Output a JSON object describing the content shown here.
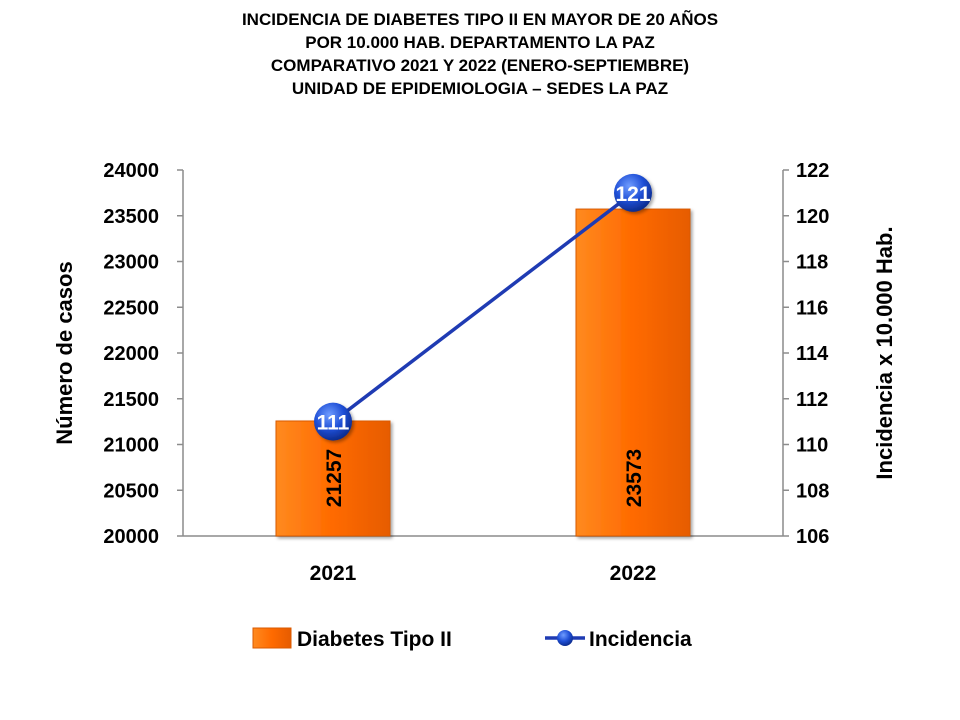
{
  "title_lines": [
    "INCIDENCIA DE DIABETES TIPO II EN MAYOR DE 20 AÑOS",
    "POR 10.000 HAB. DEPARTAMENTO LA PAZ",
    "COMPARATIVO 2021 Y 2022 (ENERO-SEPTIEMBRE)",
    "UNIDAD DE EPIDEMIOLOGIA – SEDES LA PAZ"
  ],
  "chart_data": {
    "type": "bar",
    "categories": [
      "2021",
      "2022"
    ],
    "series": [
      {
        "name": "Diabetes Tipo II",
        "type": "bar",
        "axis": "left",
        "values": [
          21257,
          23573
        ],
        "color": "#ff6a00"
      },
      {
        "name": "Incidencia",
        "type": "line",
        "axis": "right",
        "values": [
          111,
          121
        ],
        "color": "#1f3bb3",
        "marker_color": "#1f4fd6"
      }
    ],
    "ylabel": "Número de casos",
    "y2label": "Incidencia x 10.000 Hab.",
    "ylim": [
      20000,
      24000
    ],
    "y2lim": [
      106,
      122
    ],
    "yticks": [
      "20000",
      "20500",
      "21000",
      "21500",
      "22000",
      "22500",
      "23000",
      "23500",
      "24000"
    ],
    "y2ticks": [
      "106",
      "108",
      "110",
      "112",
      "114",
      "116",
      "118",
      "120",
      "122"
    ],
    "bar_labels": [
      "21257",
      "23573"
    ],
    "line_labels": [
      "111",
      "121"
    ],
    "grid": false,
    "legend_position": "bottom"
  }
}
